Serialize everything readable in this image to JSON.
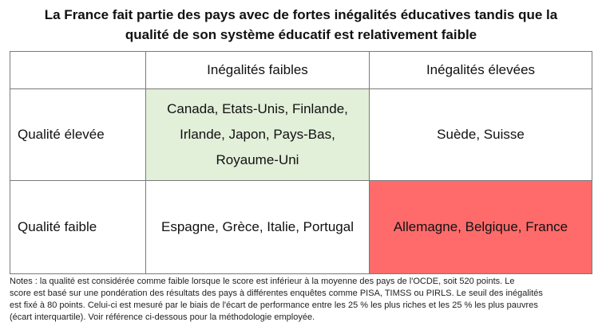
{
  "title": {
    "line1": "La France fait partie des pays avec de fortes inégalités éducatives tandis que la",
    "line2": "qualité de son système éducatif est relativement faible"
  },
  "matrix": {
    "col_headers": [
      "Inégalités faibles",
      "Inégalités élevées"
    ],
    "rows": [
      {
        "label": "Qualité élevée",
        "low_inequality_lines": [
          "Canada, Etats-Unis, Finlande,",
          "Irlande, Japon, Pays-Bas,",
          "Royaume-Uni"
        ],
        "high_inequality": "Suède, Suisse"
      },
      {
        "label": "Qualité faible",
        "low_inequality": "Espagne, Grèce, Italie, Portugal",
        "high_inequality": "Allemagne, Belgique, France"
      }
    ],
    "colors": {
      "highlight_green": "#e2efd9",
      "highlight_red": "#ff6b6b"
    }
  },
  "notes": {
    "line1": "Notes : la qualité est considérée comme faible lorsque le score est inférieur à la moyenne des pays de l'OCDE, soit 520 points. Le",
    "line2": "score est basé sur une pondération des résultats des pays à différentes enquêtes comme PISA, TIMSS ou PIRLS. Le seuil des inégalités",
    "line3": "est fixé à 80 points. Celui-ci est mesuré par le biais de l'écart de performance entre les 25 % les plus riches et les 25 % les plus pauvres",
    "line4": "(écart interquartile). Voir référence ci-dessous pour la méthodologie employée."
  }
}
